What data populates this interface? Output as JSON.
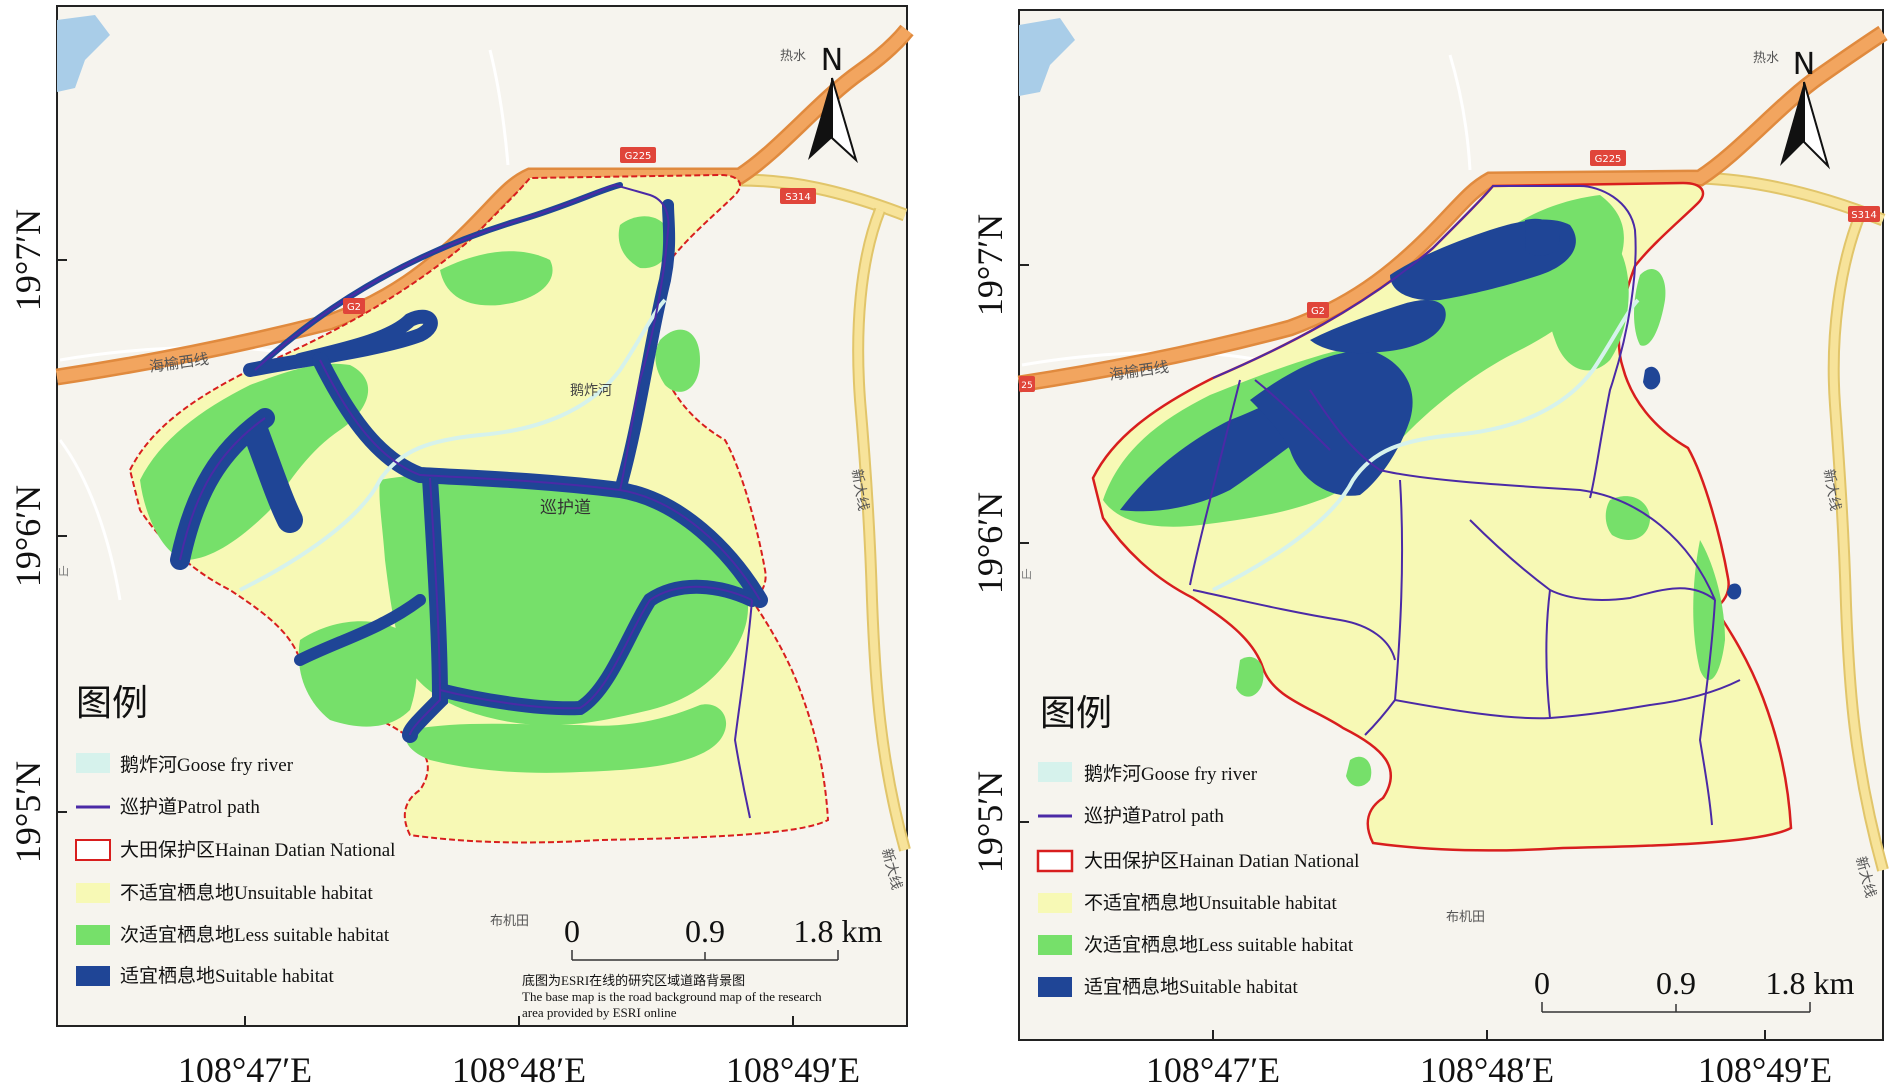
{
  "colors": {
    "basemap": "#f6f4ee",
    "river_water": "#a9cde8",
    "highway": "#f2a55f",
    "highway_edge": "#e08a3e",
    "provincial": "#f7e39a",
    "provincial_edge": "#e1c56a",
    "minor_road": "#ffffff",
    "boundary": "#d81e1e",
    "unsuitable": "#f7f9b5",
    "less_suitable": "#76e06a",
    "suitable": "#1f4596",
    "patrol": "#4b2aa6",
    "goose_river": "#d6f2ec",
    "shield": "#e0453a"
  },
  "maps": [
    {
      "id": "left",
      "axis_lat": [
        "19°7′N",
        "19°6′N",
        "19°5′N"
      ],
      "axis_lon": [
        "108°47′E",
        "108°48′E",
        "108°49′E"
      ],
      "labels": {
        "place_reshui": "热水",
        "place_bujitian": "布机田",
        "place_shan": "山",
        "road_haiyu": "海榆西线",
        "road_xinda_1": "新大线",
        "road_xinda_2": "新大线",
        "shield_g225": "G225",
        "shield_s314": "S314",
        "shield_g2": "G2",
        "river_label": "鹅炸河",
        "patrol_label": "巡护道"
      },
      "north": "N",
      "legend": {
        "title": "图例",
        "items": [
          {
            "key": "goose_river",
            "label": "鹅炸河Goose fry river"
          },
          {
            "key": "patrol",
            "label": "巡护道Patrol path"
          },
          {
            "key": "boundary",
            "label": "大田保护区Hainan Datian National"
          },
          {
            "key": "unsuitable",
            "label": "不适宜栖息地Unsuitable habitat"
          },
          {
            "key": "less_suitable",
            "label": "次适宜栖息地Less suitable habitat"
          },
          {
            "key": "suitable",
            "label": "适宜栖息地Suitable habitat"
          }
        ]
      },
      "scale": {
        "ticks": [
          "0",
          "0.9",
          "1.8 km"
        ]
      },
      "note": [
        "底图为ESRI在线的研究区域道路背景图",
        "The base map is the road background map of the research",
        "area provided by ESRI online"
      ]
    },
    {
      "id": "right",
      "axis_lat": [
        "19°7′N",
        "19°6′N",
        "19°5′N"
      ],
      "axis_lon": [
        "108°47′E",
        "108°48′E",
        "108°49′E"
      ],
      "labels": {
        "place_reshui": "热水",
        "place_bujitian": "布机田",
        "place_shan": "山",
        "road_haiyu": "海榆西线",
        "road_xinda_1": "新大线",
        "road_xinda_2": "新大线",
        "shield_g225": "G225",
        "shield_s314": "S314",
        "shield_g2": "G2",
        "shield_25": "25"
      },
      "north": "N",
      "legend": {
        "title": "图例",
        "items": [
          {
            "key": "goose_river",
            "label": "鹅炸河Goose fry river"
          },
          {
            "key": "patrol",
            "label": "巡护道Patrol path"
          },
          {
            "key": "boundary",
            "label": "大田保护区Hainan Datian National"
          },
          {
            "key": "unsuitable",
            "label": "不适宜栖息地Unsuitable habitat"
          },
          {
            "key": "less_suitable",
            "label": "次适宜栖息地Less suitable habitat"
          },
          {
            "key": "suitable",
            "label": "适宜栖息地Suitable habitat"
          }
        ]
      },
      "scale": {
        "ticks": [
          "0",
          "0.9",
          "1.8 km"
        ]
      }
    }
  ]
}
